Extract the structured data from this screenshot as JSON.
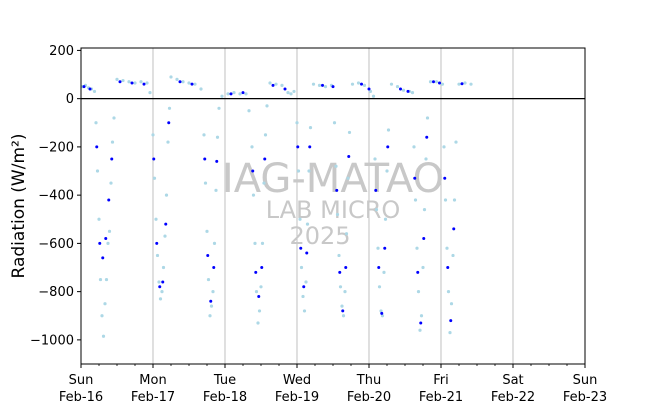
{
  "chart_data": {
    "type": "scatter",
    "title": "",
    "ylabel": "Radiation (W/m²)",
    "xlabel": "",
    "ylim": [
      -1100,
      210
    ],
    "xlim": [
      "2025-02-16",
      "2025-02-23"
    ],
    "yticks": [
      200,
      0,
      -200,
      -400,
      -600,
      -800,
      -1000
    ],
    "yticks_labels": [
      "200",
      "0",
      "−200",
      "−400",
      "−600",
      "−800",
      "−1000"
    ],
    "xticks": [
      {
        "x": "2025-02-16",
        "day": "Sun",
        "date": "Feb-16"
      },
      {
        "x": "2025-02-17",
        "day": "Mon",
        "date": "Feb-17"
      },
      {
        "x": "2025-02-18",
        "day": "Tue",
        "date": "Feb-18"
      },
      {
        "x": "2025-02-19",
        "day": "Wed",
        "date": "Feb-19"
      },
      {
        "x": "2025-02-20",
        "day": "Thu",
        "date": "Feb-20"
      },
      {
        "x": "2025-02-21",
        "day": "Fri",
        "date": "Feb-21"
      },
      {
        "x": "2025-02-22",
        "day": "Sat",
        "date": "Feb-22"
      },
      {
        "x": "2025-02-23",
        "day": "Sun",
        "date": "Feb-23"
      }
    ],
    "grid": "vertical at day ticks",
    "zero_line": true,
    "series": [
      {
        "color": "#add8e6",
        "points": [
          [
            "2025-02-16T00:30",
            50
          ],
          [
            "2025-02-16T01:30",
            55
          ],
          [
            "2025-02-16T02:30",
            45
          ],
          [
            "2025-02-16T03:30",
            40
          ],
          [
            "2025-02-16T04:30",
            30
          ],
          [
            "2025-02-16T05:00",
            -100
          ],
          [
            "2025-02-16T05:30",
            -300
          ],
          [
            "2025-02-16T06:00",
            -500
          ],
          [
            "2025-02-16T06:30",
            -750
          ],
          [
            "2025-02-16T07:00",
            -900
          ],
          [
            "2025-02-16T07:30",
            -985
          ],
          [
            "2025-02-16T08:00",
            -850
          ],
          [
            "2025-02-16T08:30",
            -750
          ],
          [
            "2025-02-16T09:00",
            -600
          ],
          [
            "2025-02-16T09:30",
            -550
          ],
          [
            "2025-02-16T10:00",
            -350
          ],
          [
            "2025-02-16T10:30",
            -180
          ],
          [
            "2025-02-16T11:00",
            -80
          ],
          [
            "2025-02-16T12:00",
            80
          ],
          [
            "2025-02-16T14:00",
            75
          ],
          [
            "2025-02-16T16:00",
            70
          ],
          [
            "2025-02-16T18:00",
            65
          ],
          [
            "2025-02-16T20:00",
            70
          ],
          [
            "2025-02-16T22:00",
            65
          ],
          [
            "2025-02-16T23:00",
            25
          ],
          [
            "2025-02-17T00:00",
            -150
          ],
          [
            "2025-02-17T00:30",
            -330
          ],
          [
            "2025-02-17T01:00",
            -500
          ],
          [
            "2025-02-17T01:30",
            -650
          ],
          [
            "2025-02-17T02:00",
            -760
          ],
          [
            "2025-02-17T02:30",
            -830
          ],
          [
            "2025-02-17T03:00",
            -800
          ],
          [
            "2025-02-17T03:30",
            -700
          ],
          [
            "2025-02-17T04:00",
            -570
          ],
          [
            "2025-02-17T04:30",
            -400
          ],
          [
            "2025-02-17T05:00",
            -180
          ],
          [
            "2025-02-17T05:30",
            -40
          ],
          [
            "2025-02-17T06:00",
            90
          ],
          [
            "2025-02-17T08:00",
            80
          ],
          [
            "2025-02-17T10:00",
            70
          ],
          [
            "2025-02-17T12:00",
            65
          ],
          [
            "2025-02-17T14:00",
            60
          ],
          [
            "2025-02-17T16:00",
            40
          ],
          [
            "2025-02-17T17:00",
            -150
          ],
          [
            "2025-02-17T17:30",
            -350
          ],
          [
            "2025-02-17T18:00",
            -550
          ],
          [
            "2025-02-17T18:30",
            -750
          ],
          [
            "2025-02-17T19:00",
            -900
          ],
          [
            "2025-02-17T19:30",
            -860
          ],
          [
            "2025-02-17T20:00",
            -800
          ],
          [
            "2025-02-17T20:30",
            -600
          ],
          [
            "2025-02-17T21:00",
            -380
          ],
          [
            "2025-02-17T21:30",
            -160
          ],
          [
            "2025-02-17T22:00",
            -40
          ],
          [
            "2025-02-17T23:00",
            10
          ],
          [
            "2025-02-18T01:00",
            20
          ],
          [
            "2025-02-18T03:00",
            25
          ],
          [
            "2025-02-18T05:00",
            20
          ],
          [
            "2025-02-18T07:00",
            20
          ],
          [
            "2025-02-18T08:00",
            -50
          ],
          [
            "2025-02-18T09:00",
            -200
          ],
          [
            "2025-02-18T09:30",
            -400
          ],
          [
            "2025-02-18T10:00",
            -600
          ],
          [
            "2025-02-18T10:30",
            -800
          ],
          [
            "2025-02-18T11:00",
            -930
          ],
          [
            "2025-02-18T11:30",
            -880
          ],
          [
            "2025-02-18T12:00",
            -780
          ],
          [
            "2025-02-18T12:30",
            -600
          ],
          [
            "2025-02-18T13:00",
            -350
          ],
          [
            "2025-02-18T13:30",
            -150
          ],
          [
            "2025-02-18T14:00",
            -30
          ],
          [
            "2025-02-18T15:00",
            65
          ],
          [
            "2025-02-18T17:00",
            60
          ],
          [
            "2025-02-18T19:00",
            55
          ],
          [
            "2025-02-18T21:00",
            25
          ],
          [
            "2025-02-18T22:00",
            20
          ],
          [
            "2025-02-18T23:00",
            30
          ],
          [
            "2025-02-19T00:00",
            -100
          ],
          [
            "2025-02-19T00:30",
            -300
          ],
          [
            "2025-02-19T01:00",
            -500
          ],
          [
            "2025-02-19T01:30",
            -700
          ],
          [
            "2025-02-19T02:00",
            -820
          ],
          [
            "2025-02-19T02:30",
            -880
          ],
          [
            "2025-02-19T03:00",
            -760
          ],
          [
            "2025-02-19T03:30",
            -520
          ],
          [
            "2025-02-19T04:00",
            -300
          ],
          [
            "2025-02-19T04:30",
            -120
          ],
          [
            "2025-02-19T05:30",
            60
          ],
          [
            "2025-02-19T07:30",
            55
          ],
          [
            "2025-02-19T09:30",
            50
          ],
          [
            "2025-02-19T11:30",
            55
          ],
          [
            "2025-02-19T12:30",
            -100
          ],
          [
            "2025-02-19T13:00",
            -280
          ],
          [
            "2025-02-19T13:30",
            -480
          ],
          [
            "2025-02-19T14:00",
            -650
          ],
          [
            "2025-02-19T14:30",
            -780
          ],
          [
            "2025-02-19T15:00",
            -860
          ],
          [
            "2025-02-19T15:30",
            -900
          ],
          [
            "2025-02-19T16:00",
            -800
          ],
          [
            "2025-02-19T16:30",
            -560
          ],
          [
            "2025-02-19T17:00",
            -330
          ],
          [
            "2025-02-19T17:30",
            -140
          ],
          [
            "2025-02-19T18:30",
            60
          ],
          [
            "2025-02-19T20:30",
            65
          ],
          [
            "2025-02-19T22:30",
            55
          ],
          [
            "2025-02-20T00:30",
            30
          ],
          [
            "2025-02-20T01:30",
            10
          ],
          [
            "2025-02-20T02:00",
            -250
          ],
          [
            "2025-02-20T02:30",
            -460
          ],
          [
            "2025-02-20T03:00",
            -620
          ],
          [
            "2025-02-20T03:30",
            -780
          ],
          [
            "2025-02-20T04:00",
            -880
          ],
          [
            "2025-02-20T04:30",
            -900
          ],
          [
            "2025-02-20T05:00",
            -720
          ],
          [
            "2025-02-20T05:30",
            -500
          ],
          [
            "2025-02-20T06:00",
            -300
          ],
          [
            "2025-02-20T06:30",
            -130
          ],
          [
            "2025-02-20T07:30",
            60
          ],
          [
            "2025-02-20T09:30",
            50
          ],
          [
            "2025-02-20T11:30",
            35
          ],
          [
            "2025-02-20T13:30",
            30
          ],
          [
            "2025-02-20T14:30",
            25
          ],
          [
            "2025-02-20T15:00",
            -200
          ],
          [
            "2025-02-20T15:30",
            -420
          ],
          [
            "2025-02-20T16:00",
            -620
          ],
          [
            "2025-02-20T16:30",
            -800
          ],
          [
            "2025-02-20T17:00",
            -960
          ],
          [
            "2025-02-20T17:30",
            -900
          ],
          [
            "2025-02-20T18:00",
            -700
          ],
          [
            "2025-02-20T18:30",
            -460
          ],
          [
            "2025-02-20T19:00",
            -250
          ],
          [
            "2025-02-20T19:30",
            -80
          ],
          [
            "2025-02-20T20:30",
            70
          ],
          [
            "2025-02-20T22:30",
            70
          ],
          [
            "2025-02-21T00:30",
            60
          ],
          [
            "2025-02-21T01:00",
            -200
          ],
          [
            "2025-02-21T01:30",
            -420
          ],
          [
            "2025-02-21T02:00",
            -620
          ],
          [
            "2025-02-21T02:30",
            -800
          ],
          [
            "2025-02-21T03:00",
            -970
          ],
          [
            "2025-02-21T03:30",
            -850
          ],
          [
            "2025-02-21T04:00",
            -650
          ],
          [
            "2025-02-21T04:30",
            -420
          ],
          [
            "2025-02-21T05:00",
            -180
          ],
          [
            "2025-02-21T06:00",
            60
          ],
          [
            "2025-02-21T08:00",
            65
          ],
          [
            "2025-02-21T10:00",
            60
          ]
        ]
      },
      {
        "color": "#0000ff",
        "points": [
          [
            "2025-02-16T01:00",
            50
          ],
          [
            "2025-02-16T03:00",
            40
          ],
          [
            "2025-02-16T05:15",
            -200
          ],
          [
            "2025-02-16T06:15",
            -600
          ],
          [
            "2025-02-16T07:15",
            -660
          ],
          [
            "2025-02-16T08:15",
            -580
          ],
          [
            "2025-02-16T09:15",
            -420
          ],
          [
            "2025-02-16T10:15",
            -250
          ],
          [
            "2025-02-16T13:00",
            70
          ],
          [
            "2025-02-16T17:00",
            65
          ],
          [
            "2025-02-16T21:00",
            60
          ],
          [
            "2025-02-17T00:15",
            -250
          ],
          [
            "2025-02-17T01:15",
            -600
          ],
          [
            "2025-02-17T02:15",
            -780
          ],
          [
            "2025-02-17T03:15",
            -760
          ],
          [
            "2025-02-17T04:15",
            -520
          ],
          [
            "2025-02-17T05:15",
            -100
          ],
          [
            "2025-02-17T09:00",
            70
          ],
          [
            "2025-02-17T13:00",
            60
          ],
          [
            "2025-02-17T17:15",
            -250
          ],
          [
            "2025-02-17T18:15",
            -650
          ],
          [
            "2025-02-17T19:15",
            -840
          ],
          [
            "2025-02-17T20:15",
            -700
          ],
          [
            "2025-02-17T21:15",
            -260
          ],
          [
            "2025-02-18T02:00",
            20
          ],
          [
            "2025-02-18T06:00",
            25
          ],
          [
            "2025-02-18T09:15",
            -300
          ],
          [
            "2025-02-18T10:15",
            -720
          ],
          [
            "2025-02-18T11:15",
            -820
          ],
          [
            "2025-02-18T12:15",
            -700
          ],
          [
            "2025-02-18T13:15",
            -250
          ],
          [
            "2025-02-18T16:00",
            55
          ],
          [
            "2025-02-18T20:00",
            40
          ],
          [
            "2025-02-19T00:15",
            -200
          ],
          [
            "2025-02-19T01:15",
            -620
          ],
          [
            "2025-02-19T02:15",
            -780
          ],
          [
            "2025-02-19T03:15",
            -640
          ],
          [
            "2025-02-19T04:15",
            -200
          ],
          [
            "2025-02-19T08:30",
            55
          ],
          [
            "2025-02-19T12:00",
            50
          ],
          [
            "2025-02-19T13:15",
            -380
          ],
          [
            "2025-02-19T14:15",
            -720
          ],
          [
            "2025-02-19T15:15",
            -880
          ],
          [
            "2025-02-19T16:15",
            -700
          ],
          [
            "2025-02-19T17:15",
            -240
          ],
          [
            "2025-02-19T21:30",
            60
          ],
          [
            "2025-02-20T00:00",
            40
          ],
          [
            "2025-02-20T02:15",
            -380
          ],
          [
            "2025-02-20T03:15",
            -700
          ],
          [
            "2025-02-20T04:15",
            -890
          ],
          [
            "2025-02-20T05:15",
            -620
          ],
          [
            "2025-02-20T06:15",
            -200
          ],
          [
            "2025-02-20T10:30",
            40
          ],
          [
            "2025-02-20T13:00",
            30
          ],
          [
            "2025-02-20T15:15",
            -330
          ],
          [
            "2025-02-20T16:15",
            -720
          ],
          [
            "2025-02-20T17:15",
            -930
          ],
          [
            "2025-02-20T18:15",
            -580
          ],
          [
            "2025-02-20T19:15",
            -160
          ],
          [
            "2025-02-20T21:30",
            70
          ],
          [
            "2025-02-20T23:30",
            65
          ],
          [
            "2025-02-21T01:15",
            -330
          ],
          [
            "2025-02-21T02:15",
            -700
          ],
          [
            "2025-02-21T03:15",
            -920
          ],
          [
            "2025-02-21T04:15",
            -540
          ],
          [
            "2025-02-21T07:00",
            62
          ]
        ]
      }
    ],
    "watermark": [
      "IAG-MATAO",
      "LAB MICRO",
      "2025"
    ]
  }
}
